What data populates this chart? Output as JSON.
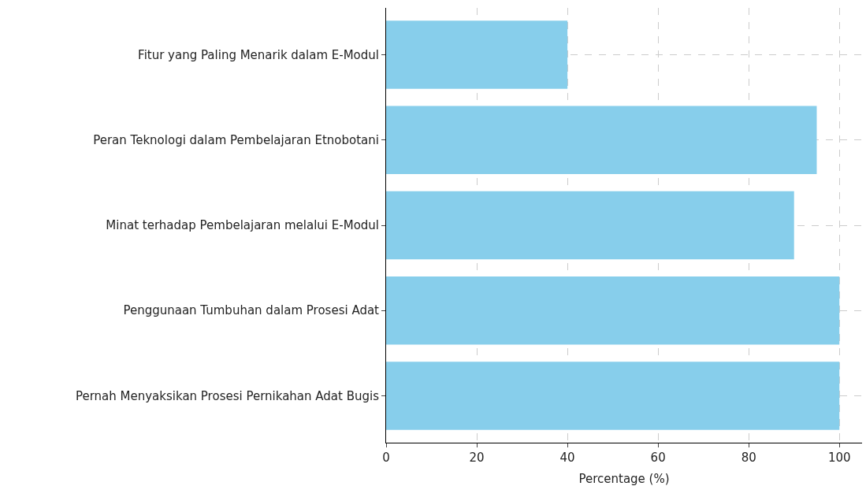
{
  "chart_data": {
    "type": "bar",
    "orientation": "horizontal",
    "xlabel": "Percentage (%)",
    "categories": [
      "Fitur yang Paling Menarik dalam E-Modul",
      "Peran Teknologi dalam Pembelajaran Etnobotani",
      "Minat terhadap Pembelajaran melalui E-Modul",
      "Penggunaan Tumbuhan dalam Prosesi Adat",
      "Pernah Menyaksikan Prosesi Pernikahan Adat Bugis"
    ],
    "values": [
      40,
      95,
      90,
      100,
      100
    ],
    "color": "#87ceeb",
    "xlim": [
      0,
      105
    ],
    "xticks": [
      0,
      20,
      40,
      60,
      80,
      100
    ],
    "grid": true
  }
}
